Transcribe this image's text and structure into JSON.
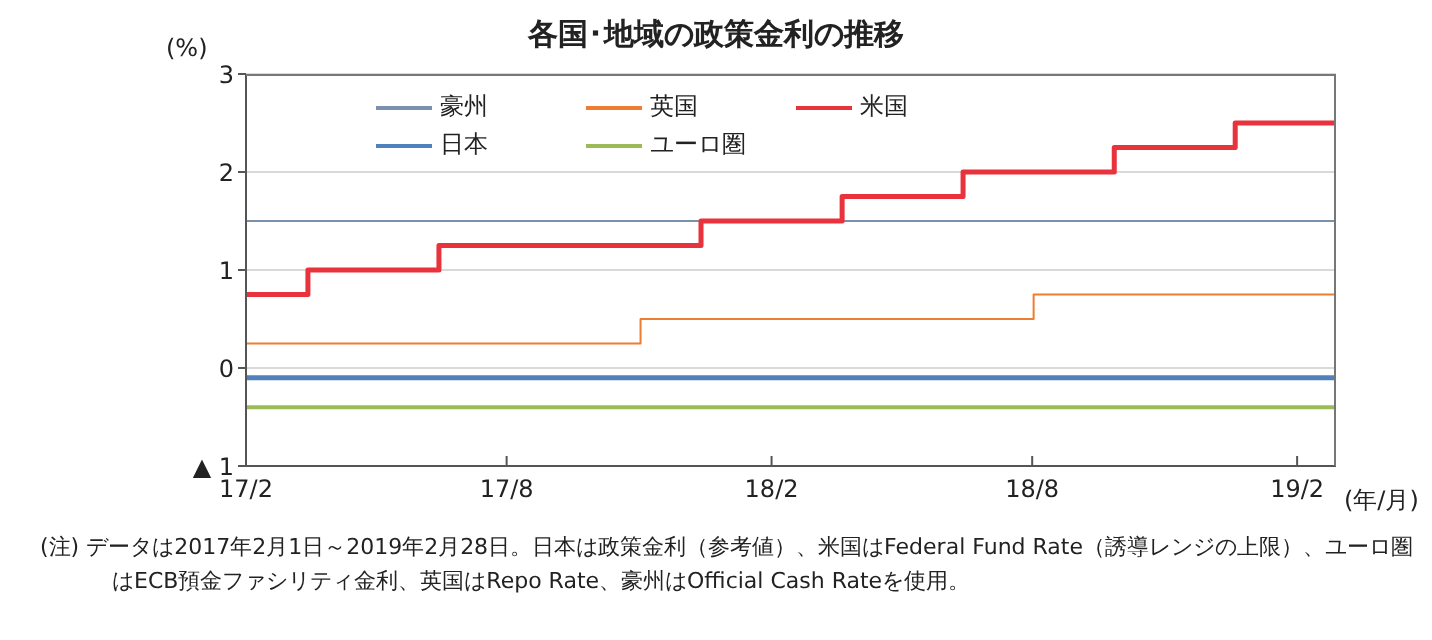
{
  "chart_data": {
    "type": "step",
    "title": "各国･地域の政策金利の推移",
    "ylabel": "(%)",
    "xlabel": "(年/月)",
    "x": [
      "2017-02-01",
      "2017-03-16",
      "2017-06-15",
      "2017-11-02",
      "2017-12-14",
      "2018-03-22",
      "2018-06-14",
      "2018-08-02",
      "2018-09-27",
      "2018-12-20",
      "2019-02-28"
    ],
    "series": [
      {
        "name": "豪州",
        "color": "#7a91ad",
        "values": [
          1.5,
          1.5,
          1.5,
          1.5,
          1.5,
          1.5,
          1.5,
          1.5,
          1.5,
          1.5,
          1.5
        ]
      },
      {
        "name": "英国",
        "color": "#ed7d31",
        "values": [
          0.25,
          0.25,
          0.25,
          0.5,
          0.5,
          0.5,
          0.5,
          0.75,
          0.75,
          0.75,
          0.75
        ]
      },
      {
        "name": "米国",
        "color": "#e8323c",
        "values": [
          0.75,
          1.0,
          1.25,
          1.25,
          1.5,
          1.75,
          2.0,
          2.0,
          2.25,
          2.5,
          2.5
        ]
      },
      {
        "name": "日本",
        "color": "#4f81bd",
        "values": [
          -0.1,
          -0.1,
          -0.1,
          -0.1,
          -0.1,
          -0.1,
          -0.1,
          -0.1,
          -0.1,
          -0.1,
          -0.1
        ]
      },
      {
        "name": "ユーロ圏",
        "color": "#9bbb59",
        "values": [
          -0.4,
          -0.4,
          -0.4,
          -0.4,
          -0.4,
          -0.4,
          -0.4,
          -0.4,
          -0.4,
          -0.4,
          -0.4
        ]
      }
    ],
    "xlim": [
      "2017-02-01",
      "2019-02-28"
    ],
    "xticks": [
      {
        "value": "2017-02-01",
        "label": "17/2"
      },
      {
        "value": "2017-08-01",
        "label": "17/8"
      },
      {
        "value": "2018-02-01",
        "label": "18/2"
      },
      {
        "value": "2018-08-01",
        "label": "18/8"
      },
      {
        "value": "2019-02-01",
        "label": "19/2"
      }
    ],
    "ylim": [
      -1,
      3
    ],
    "yticks": [
      {
        "value": -1,
        "label": "▲ 1"
      },
      0,
      1,
      2,
      3
    ],
    "grid": "y",
    "legend": "top",
    "line_style": "solid",
    "marker": "none",
    "annotations": [
      "(注) データは2017年2月1日～2019年2月28日。日本は政策金利（参考値）、米国はFederal Fund Rate（誘導レンジの上限）、ユーロ圏はECB預金ファシリティ金利、英国はRepo Rate、豪州はOfficial Cash Rateを使用。"
    ]
  }
}
